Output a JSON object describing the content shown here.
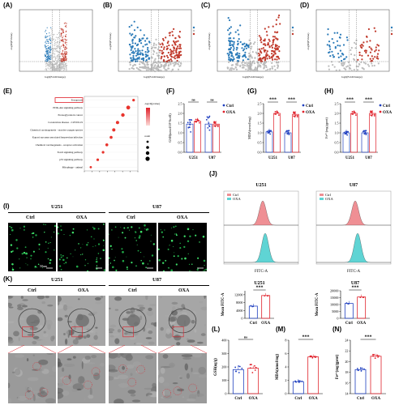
{
  "panel_labels": {
    "a": "(A)",
    "b": "(B)",
    "c": "(C)",
    "d": "(D)",
    "e": "(E)",
    "f": "(F)",
    "g": "(G)",
    "h": "(H)",
    "i": "(I)",
    "j": "(J)",
    "k": "(K)",
    "l": "(L)",
    "m": "(M)",
    "n": "(N)"
  },
  "volcano_xlabel": "log2(FoldChange)",
  "volcano_ylabel": "-log10(PValue)",
  "enrichment": {
    "highlight": "Ferroptosis",
    "terms": [
      "Ferroptosis",
      "PI3K-Akt signaling pathway",
      "Proteoglycans in cancer",
      "Coronavirus disease - COVID-19",
      "Chemical carcinogenesis - reactive oxygen species",
      "Kaposi sarcoma-associated herpesvirus infection",
      "Chemical carcinogenesis - receptor activation",
      "FoxO signaling pathway",
      "p53 signaling pathway",
      "Mitophagy - animal"
    ],
    "legend_p": "-log10(pvalue)",
    "legend_count": "count"
  },
  "groups": {
    "ctrl": "Ctrl",
    "oxa": "OXA",
    "u251": "U251",
    "u87": "U87"
  },
  "colors": {
    "ctrl": "#1f3fbf",
    "oxa": "#e0202a",
    "ctrl_hist": "#ef8f94",
    "oxa_hist": "#5fd4d4"
  },
  "sig": {
    "ns": "ns",
    "stars": "***"
  },
  "flow_xlabel": "FITC-A",
  "scale_bar": "50um",
  "chart_data": [
    {
      "type": "bar",
      "panel": "F",
      "ylabel": "GSH(umol/10^6cell)",
      "categories": [
        "U251",
        "U87"
      ],
      "ylim": [
        0,
        2.5
      ],
      "series": [
        {
          "name": "Ctrl",
          "values": [
            1.45,
            1.45
          ]
        },
        {
          "name": "OXA",
          "values": [
            1.6,
            1.45
          ]
        }
      ],
      "significance": [
        "ns",
        "ns"
      ]
    },
    {
      "type": "bar",
      "panel": "G",
      "ylabel": "MDA(nmol/mg)",
      "categories": [
        "U251",
        "U87"
      ],
      "ylim": [
        0,
        2.5
      ],
      "series": [
        {
          "name": "Ctrl",
          "values": [
            1.05,
            1.0
          ]
        },
        {
          "name": "OXA",
          "values": [
            2.0,
            1.95
          ]
        }
      ],
      "significance": [
        "***",
        "***"
      ]
    },
    {
      "type": "bar",
      "panel": "H",
      "ylabel": "Fe²⁺(mg/gprot)",
      "categories": [
        "U251",
        "U87"
      ],
      "ylim": [
        0,
        2.5
      ],
      "series": [
        {
          "name": "Ctrl",
          "values": [
            1.0,
            1.0
          ]
        },
        {
          "name": "OXA",
          "values": [
            2.0,
            2.0
          ]
        }
      ],
      "significance": [
        "***",
        "***"
      ]
    },
    {
      "type": "bar",
      "panel": "J-U251",
      "title": "U251",
      "ylabel": "Mean FITC-A",
      "categories": [
        "Ctrl",
        "OXA"
      ],
      "ylim": [
        0,
        14000
      ],
      "yticks": [
        "0",
        "4000",
        "8000",
        "12000"
      ],
      "values": [
        6200,
        11600
      ],
      "significance": [
        "***"
      ]
    },
    {
      "type": "bar",
      "panel": "J-U87",
      "title": "U87",
      "ylabel": "Mean FITC-A",
      "categories": [
        "Ctrl",
        "OXA"
      ],
      "ylim": [
        0,
        20000
      ],
      "yticks": [
        "0",
        "5000",
        "10000",
        "15000",
        "20000"
      ],
      "values": [
        10800,
        15500
      ],
      "significance": [
        "***"
      ]
    },
    {
      "type": "bar",
      "panel": "L",
      "ylabel": "GSH(ug/g)",
      "categories": [
        "Ctrl",
        "OXA"
      ],
      "ylim": [
        0,
        400
      ],
      "yticks": [
        "0",
        "100",
        "200",
        "300",
        "400"
      ],
      "values": [
        180,
        190
      ],
      "significance": [
        "ns"
      ]
    },
    {
      "type": "bar",
      "panel": "M",
      "ylabel": "MDA(nmol/mg)",
      "categories": [
        "Ctrl",
        "OXA"
      ],
      "ylim": [
        0,
        8
      ],
      "yticks": [
        "0",
        "2",
        "4",
        "6",
        "8"
      ],
      "values": [
        1.8,
        5.5
      ],
      "significance": [
        "***"
      ]
    },
    {
      "type": "bar",
      "panel": "N",
      "ylabel": "Fe²⁺(mg/gprot)",
      "categories": [
        "Ctrl",
        "OXA"
      ],
      "ylim": [
        14,
        24
      ],
      "yticks": [
        "14",
        "16",
        "18",
        "20",
        "22",
        "24"
      ],
      "values": [
        18.5,
        21.0
      ],
      "significance": [
        "***"
      ]
    }
  ]
}
